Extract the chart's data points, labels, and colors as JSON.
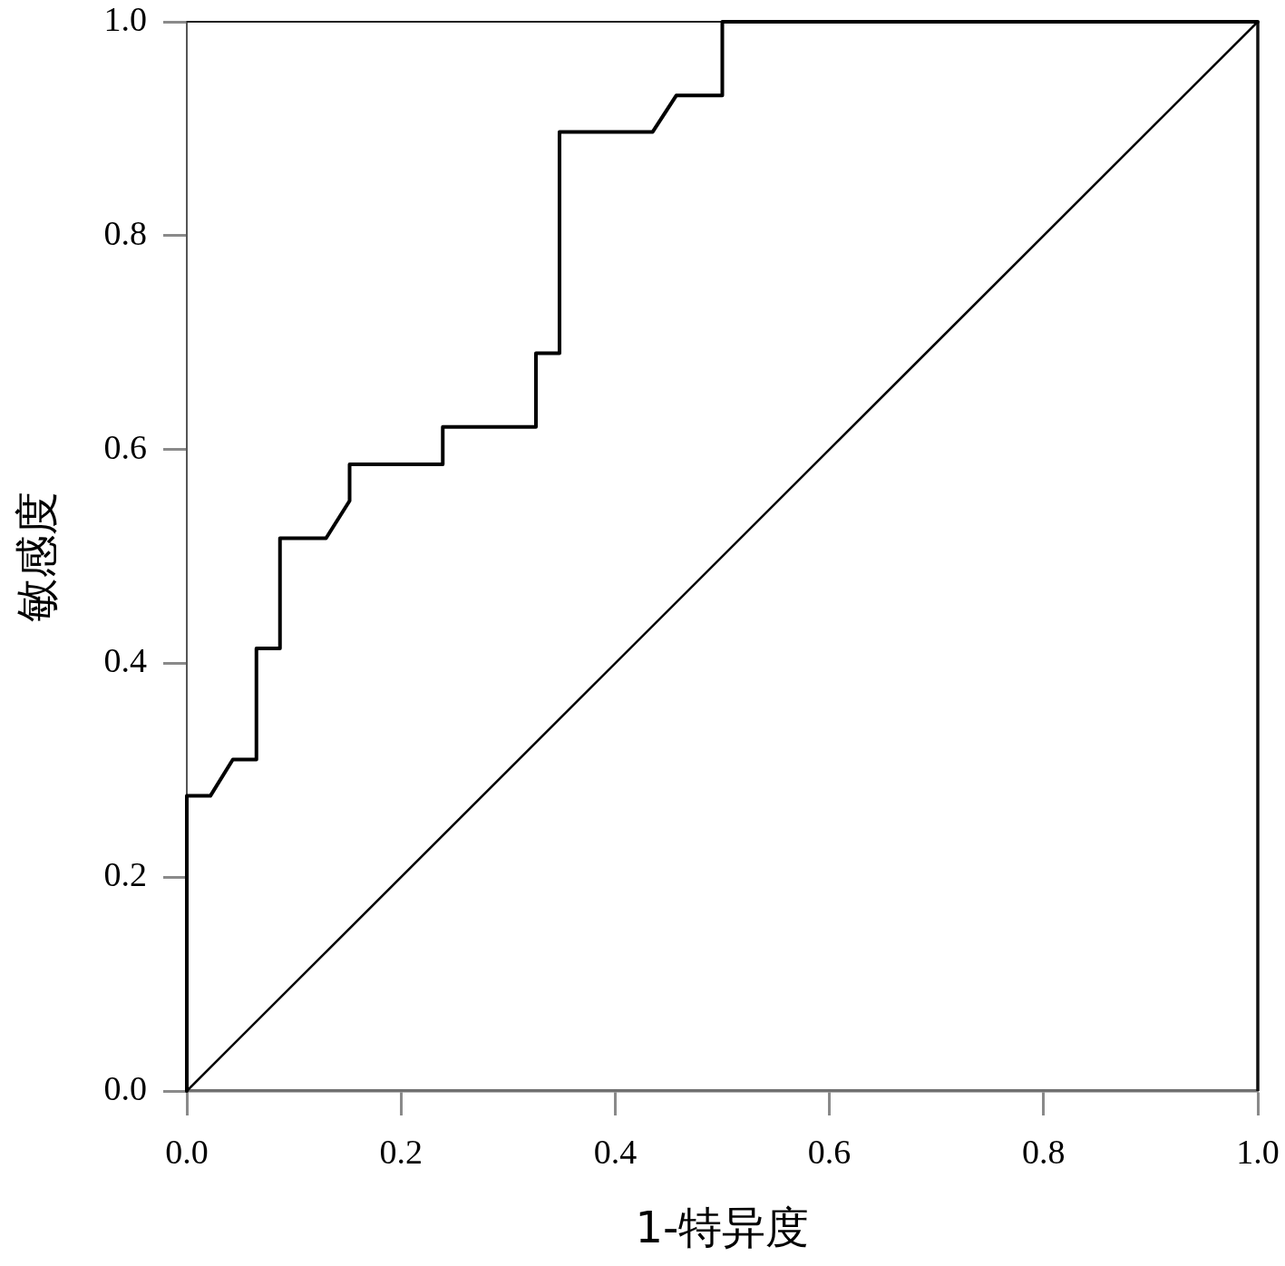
{
  "chart_data": {
    "type": "line",
    "xlabel": "1-特异度",
    "ylabel": "敏感度",
    "xlim": [
      0,
      1
    ],
    "ylim": [
      0,
      1
    ],
    "xticks": [
      {
        "value": 0,
        "label": "0.0"
      },
      0.2,
      0.4,
      0.6,
      0.8,
      {
        "value": 1,
        "label": "1.0"
      }
    ],
    "yticks": [
      {
        "value": 0,
        "label": "0.0"
      },
      0.2,
      0.4,
      0.6,
      0.8,
      {
        "value": 1,
        "label": "1.0"
      }
    ],
    "grid": false,
    "legend": false,
    "marker": "none",
    "line_style": "solid",
    "series": [
      {
        "color": "#000000",
        "x": [
          0,
          0,
          0.022,
          0.043,
          0.065,
          0.065,
          0.087,
          0.087,
          0.13,
          0.152,
          0.152,
          0.239,
          0.239,
          0.326,
          0.326,
          0.348,
          0.348,
          0.435,
          0.457,
          0.5,
          0.5,
          1
        ],
        "values": [
          0,
          0.276,
          0.276,
          0.31,
          0.31,
          0.414,
          0.414,
          0.517,
          0.517,
          0.552,
          0.586,
          0.586,
          0.621,
          0.621,
          0.69,
          0.69,
          0.897,
          0.897,
          0.931,
          0.931,
          1,
          1
        ]
      },
      {
        "color": "#000000",
        "x": [
          0,
          1
        ],
        "values": [
          0,
          1
        ]
      }
    ]
  }
}
